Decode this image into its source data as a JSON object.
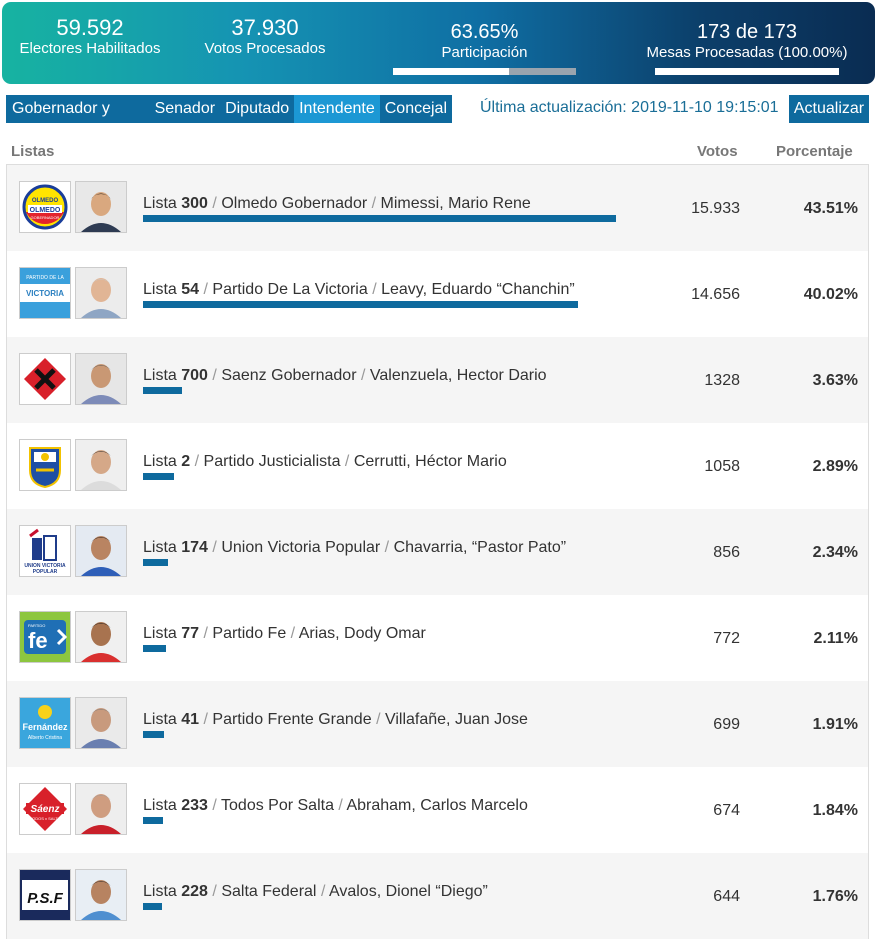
{
  "header": {
    "electores": {
      "value": "59.592",
      "label": "Electores Habilitados"
    },
    "votos": {
      "value": "37.930",
      "label": "Votos Procesados"
    },
    "participacion": {
      "value": "63.65%",
      "label": "Participación",
      "fraction": 0.6365
    },
    "mesas": {
      "value": "173 de 173",
      "label": "Mesas Procesadas (100.00%)",
      "fraction": 1.0
    }
  },
  "tabs": [
    {
      "label": "Gobernador y Vice",
      "active": false
    },
    {
      "label": "Senador",
      "active": false
    },
    {
      "label": "Diputado",
      "active": false
    },
    {
      "label": "Intendente",
      "active": true
    },
    {
      "label": "Concejal",
      "active": false
    }
  ],
  "update_text": "Última actualización: 2019-11-10 19:15:01",
  "refresh_label": "Actualizar",
  "columns": {
    "listas": "Listas",
    "votos": "Votos",
    "porcentaje": "Porcentaje"
  },
  "rows": [
    {
      "lista_prefix": "Lista",
      "lista_num": "300",
      "partido": "Olmedo Gobernador",
      "candidato": "Mimessi, Mario Rene",
      "votos": "15.933",
      "porcentaje": "43.51%",
      "share": 43.51,
      "logo": "olmedo-logo-icon"
    },
    {
      "lista_prefix": "Lista",
      "lista_num": "54",
      "partido": "Partido De La Victoria",
      "candidato": "Leavy, Eduardo “Chanchin”",
      "votos": "14.656",
      "porcentaje": "40.02%",
      "share": 40.02,
      "logo": "victoria-logo-icon"
    },
    {
      "lista_prefix": "Lista",
      "lista_num": "700",
      "partido": "Saenz Gobernador",
      "candidato": "Valenzuela, Hector Dario",
      "votos": "1328",
      "porcentaje": "3.63%",
      "share": 3.63,
      "logo": "saenz-x-logo-icon"
    },
    {
      "lista_prefix": "Lista",
      "lista_num": "2",
      "partido": "Partido Justicialista",
      "candidato": "Cerrutti, Héctor Mario",
      "votos": "1058",
      "porcentaje": "2.89%",
      "share": 2.89,
      "logo": "pj-shield-logo-icon"
    },
    {
      "lista_prefix": "Lista",
      "lista_num": "174",
      "partido": "Union Victoria Popular",
      "candidato": "Chavarria, “Pastor Pato”",
      "votos": "856",
      "porcentaje": "2.34%",
      "share": 2.34,
      "logo": "uvp-logo-icon"
    },
    {
      "lista_prefix": "Lista",
      "lista_num": "77",
      "partido": "Partido Fe",
      "candidato": "Arias, Dody Omar",
      "votos": "772",
      "porcentaje": "2.11%",
      "share": 2.11,
      "logo": "fe-logo-icon"
    },
    {
      "lista_prefix": "Lista",
      "lista_num": "41",
      "partido": "Partido Frente Grande",
      "candidato": "Villafañe, Juan Jose",
      "votos": "699",
      "porcentaje": "1.91%",
      "share": 1.91,
      "logo": "fernandez-logo-icon"
    },
    {
      "lista_prefix": "Lista",
      "lista_num": "233",
      "partido": "Todos Por Salta",
      "candidato": "Abraham, Carlos Marcelo",
      "votos": "674",
      "porcentaje": "1.84%",
      "share": 1.84,
      "logo": "saenz-logo-icon"
    },
    {
      "lista_prefix": "Lista",
      "lista_num": "228",
      "partido": "Salta Federal",
      "candidato": "Avalos, Dionel “Diego”",
      "votos": "644",
      "porcentaje": "1.76%",
      "share": 1.76,
      "logo": "psf-logo-icon"
    }
  ],
  "logo_texts": {
    "olmedo_top": "OLMEDO",
    "olmedo_main": "OLMEDO",
    "olmedo_sub": "GOBERNADOR",
    "victoria_top": "PARTIDO DE LA",
    "victoria_main": "VICTORIA",
    "uvp_main": "UNION VICTORIA",
    "uvp_sub": "POPULAR",
    "fe_small": "PARTIDO",
    "fe_main": "fe",
    "fernandez_main": "Fernández",
    "fernandez_sub": "Alberto Cristina",
    "saenz_main": "Sáenz",
    "saenz_sub": "TODOS x SALTA",
    "psf_main": "P.S.F"
  }
}
